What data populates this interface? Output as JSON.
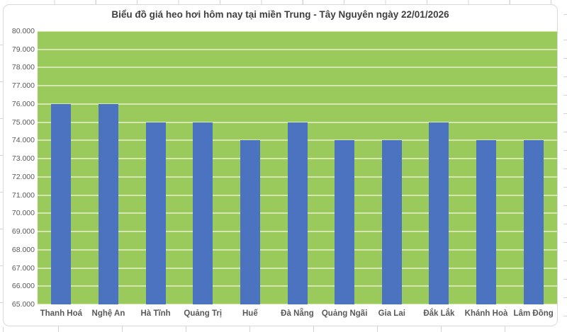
{
  "chart_data": {
    "type": "bar",
    "title": "Biểu đồ giá heo hơi hôm nay tại miền Trung - Tây Nguyên ngày 22/01/2026",
    "categories": [
      "Thanh Hoá",
      "Nghệ An",
      "Hà Tĩnh",
      "Quảng Trị",
      "Huế",
      "Đà Nẵng",
      "Quảng Ngãi",
      "Gia Lai",
      "Đắk Lắk",
      "Khánh Hoà",
      "Lâm Đồng"
    ],
    "values": [
      76000,
      76000,
      75000,
      75000,
      74000,
      75000,
      74000,
      74000,
      75000,
      74000,
      74000
    ],
    "y_ticks": [
      "80.000",
      "79.000",
      "78.000",
      "77.000",
      "76.000",
      "75.000",
      "74.000",
      "73.000",
      "72.000",
      "71.000",
      "70.000",
      "69.000",
      "68.000",
      "67.000",
      "66.000",
      "65.000"
    ],
    "ylim": [
      65000,
      80000
    ],
    "y_tick_step": 1000,
    "xlabel": "",
    "ylabel": "",
    "grid": true,
    "legend": false,
    "colors": {
      "bar": "#4c73c0",
      "plot_background": "#9aca5b",
      "gridline": "#d5e7af",
      "title_text": "#3f3f3f",
      "axis_text": "#595959",
      "chart_border": "#d9d9d9"
    }
  }
}
